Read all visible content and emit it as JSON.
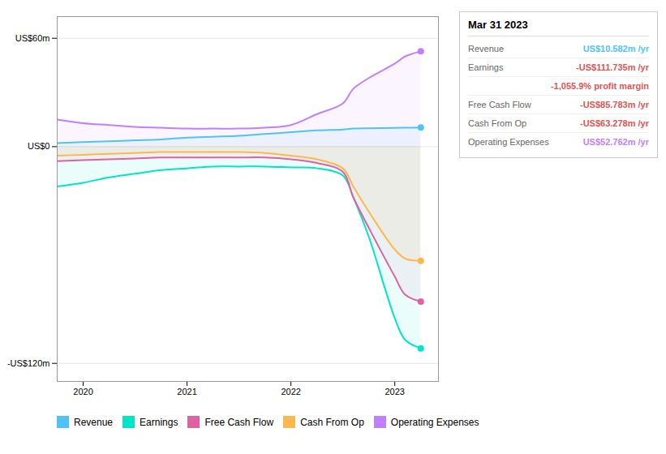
{
  "chart_data": {
    "type": "line",
    "title": "Mar 31 2023",
    "x": [
      2019.75,
      2020.0,
      2020.25,
      2020.5,
      2020.75,
      2021.0,
      2021.25,
      2021.5,
      2021.75,
      2022.0,
      2022.25,
      2022.5,
      2022.6,
      2022.75,
      2023.0,
      2023.1,
      2023.25
    ],
    "series": [
      {
        "name": "Revenue",
        "color": "#4fc3f7",
        "values": [
          2,
          2.5,
          3,
          3.5,
          4,
          5,
          5.5,
          6,
          7,
          8,
          9,
          9.5,
          10,
          10.2,
          10.4,
          10.5,
          10.582
        ]
      },
      {
        "name": "Earnings",
        "color": "#00e5c8",
        "values": [
          -22,
          -20,
          -17,
          -15,
          -13,
          -12,
          -11,
          -11,
          -11,
          -11.5,
          -12,
          -16,
          -28,
          -50,
          -95,
          -107,
          -111.735
        ]
      },
      {
        "name": "Free Cash Flow",
        "color": "#e060a0",
        "values": [
          -8,
          -7.5,
          -7,
          -6.5,
          -6,
          -6,
          -6,
          -6,
          -6,
          -7,
          -9,
          -14,
          -28,
          -45,
          -72,
          -82,
          -85.783
        ]
      },
      {
        "name": "Cash From Op",
        "color": "#ffb74d",
        "values": [
          -5,
          -4.5,
          -4,
          -3.5,
          -3,
          -3,
          -3,
          -3,
          -3.5,
          -5,
          -7,
          -12,
          -22,
          -36,
          -57,
          -62,
          -63.278
        ]
      },
      {
        "name": "Operating Expenses",
        "color": "#bf7fff",
        "values": [
          15,
          13,
          12,
          11,
          10.5,
          10,
          10,
          10,
          10.5,
          12,
          18,
          24,
          32,
          38,
          46,
          50,
          52.762
        ]
      }
    ],
    "xlim": [
      2019.75,
      2023.42
    ],
    "xticks": [
      2020,
      2021,
      2022,
      2023
    ],
    "ylim": [
      -130,
      72
    ],
    "yticks": [
      {
        "value": 60,
        "label": "US$60m"
      },
      {
        "value": 0,
        "label": "US$0"
      },
      {
        "value": -120,
        "label": "-US$120m"
      }
    ],
    "grid": true,
    "legend": "bottom",
    "annotations": [
      {
        "label": "Revenue",
        "text": "US$10.582m /yr",
        "color": "#4fc3f7"
      },
      {
        "label": "Earnings",
        "text": "-US$111.735m /yr",
        "color": "#e05555"
      },
      {
        "text": "-1,055.9% profit margin",
        "color": "#e05555"
      },
      {
        "label": "Free Cash Flow",
        "text": "-US$85.783m /yr",
        "color": "#e05555"
      },
      {
        "label": "Cash From Op",
        "text": "-US$63.278m /yr",
        "color": "#e05555"
      },
      {
        "label": "Operating Expenses",
        "text": "US$52.762m /yr",
        "color": "#bf7fff"
      }
    ]
  }
}
